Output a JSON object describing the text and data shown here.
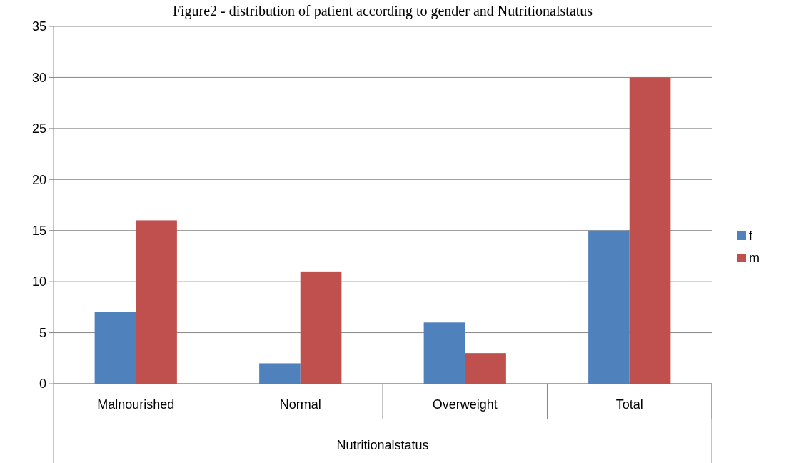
{
  "chart_data": {
    "type": "bar",
    "title": "Figure2 - distribution of patient according to gender and Nutritionalstatus",
    "xlabel": "Nutritionalstatus",
    "categories": [
      "Malnourished",
      "Normal",
      "Overweight",
      "Total"
    ],
    "series": [
      {
        "name": "f",
        "color": "#4f81bd",
        "values": [
          7,
          2,
          6,
          15
        ]
      },
      {
        "name": "m",
        "color": "#c0504d",
        "values": [
          16,
          11,
          3,
          30
        ]
      }
    ],
    "ylim": [
      0,
      35
    ],
    "yticks": [
      0,
      5,
      10,
      15,
      20,
      25,
      30,
      35
    ],
    "grid": "y",
    "legend": "right"
  }
}
